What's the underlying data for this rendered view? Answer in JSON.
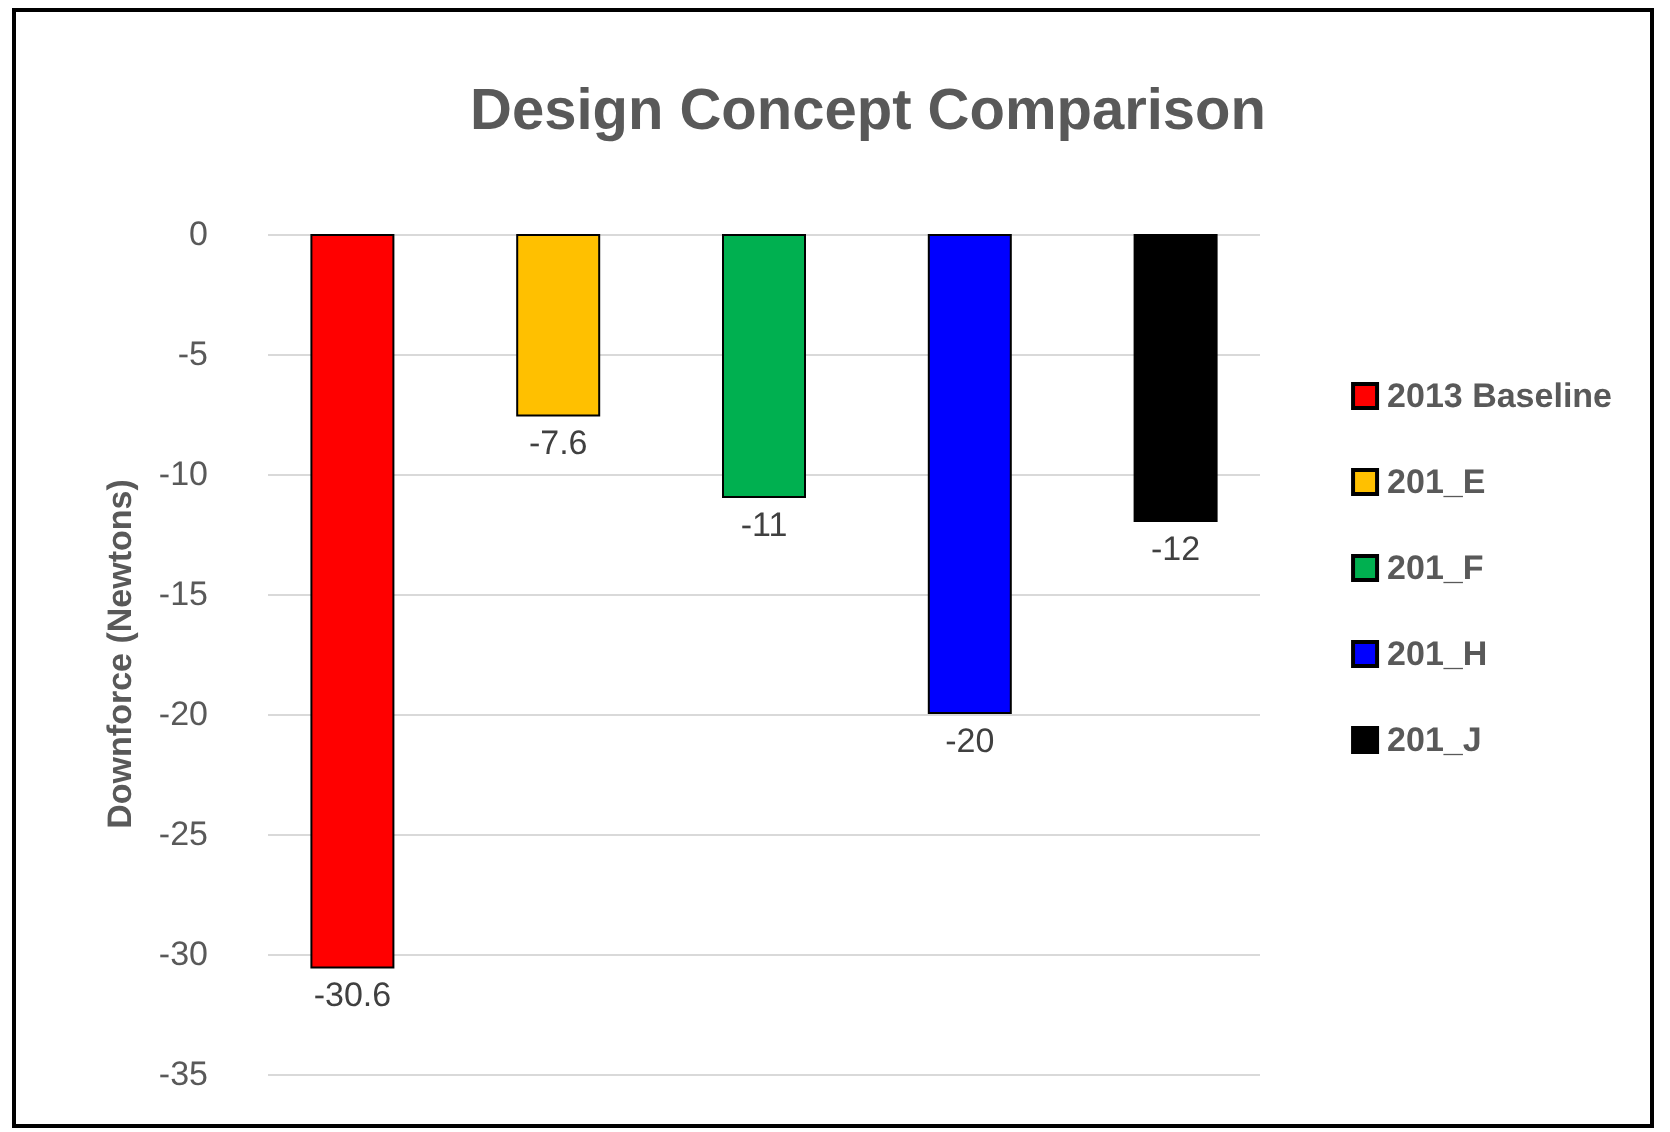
{
  "chart_data": {
    "type": "bar",
    "title": "Design Concept Comparison",
    "ylabel": "Downforce (Newtons)",
    "categories": [
      null
    ],
    "series": [
      {
        "name": "2013 Baseline",
        "color": "#ff0000",
        "values": [
          -30.6
        ]
      },
      {
        "name": "201_E",
        "color": "#ffc000",
        "values": [
          -7.6
        ]
      },
      {
        "name": "201_F",
        "color": "#00b050",
        "values": [
          -11
        ]
      },
      {
        "name": "201_H",
        "color": "#0000ff",
        "values": [
          -20
        ]
      },
      {
        "name": "201_J",
        "color": "#000000",
        "values": [
          -12
        ]
      }
    ],
    "ylim": [
      -35,
      0
    ],
    "yticks": [
      0,
      -5,
      -10,
      -15,
      -20,
      -25,
      -30,
      -35
    ],
    "grid": "y",
    "legend": "right",
    "data_labels": true
  }
}
